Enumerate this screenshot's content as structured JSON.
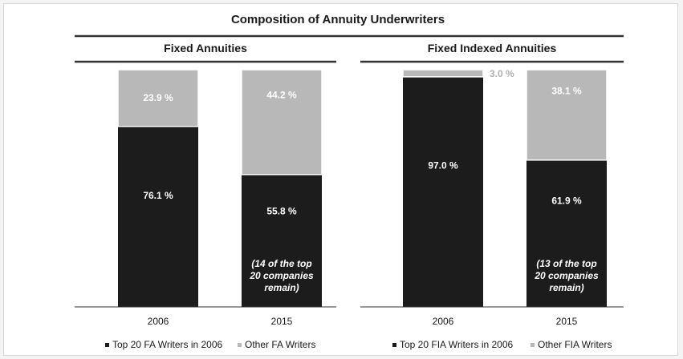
{
  "chart_data": {
    "title": "Composition of Annuity Underwriters",
    "colors": {
      "top20": "#1c1c1c",
      "other": "#b8b8b8"
    },
    "panels": [
      {
        "type": "bar",
        "stacked": true,
        "title": "Fixed Annuities",
        "categories": [
          "2006",
          "2015"
        ],
        "ylim": [
          0,
          100
        ],
        "series": [
          {
            "name": "Top 20 FA Writers in 2006",
            "color_key": "top20",
            "values": [
              76.1,
              55.8
            ]
          },
          {
            "name": "Other FA Writers",
            "color_key": "other",
            "values": [
              23.9,
              44.2
            ]
          }
        ],
        "labels": {
          "top20": [
            "76.1 %",
            "55.8 %"
          ],
          "other": [
            "23.9 %",
            "44.2 %"
          ]
        },
        "annotations": [
          {
            "category": "2015",
            "lines": [
              "(14 of the top",
              "20 companies",
              "remain)"
            ]
          }
        ]
      },
      {
        "type": "bar",
        "stacked": true,
        "title": "Fixed Indexed Annuities",
        "categories": [
          "2006",
          "2015"
        ],
        "ylim": [
          0,
          100
        ],
        "series": [
          {
            "name": "Top 20 FIA Writers in 2006",
            "color_key": "top20",
            "values": [
              97.0,
              61.9
            ]
          },
          {
            "name": "Other FIA Writers",
            "color_key": "other",
            "values": [
              3.0,
              38.1
            ]
          }
        ],
        "labels": {
          "top20": [
            "97.0 %",
            "61.9 %"
          ],
          "other": [
            "3.0 %",
            "38.1 %"
          ]
        },
        "annotations": [
          {
            "category": "2015",
            "lines": [
              "(13 of the top",
              "20 companies",
              "remain)"
            ]
          }
        ]
      }
    ]
  }
}
